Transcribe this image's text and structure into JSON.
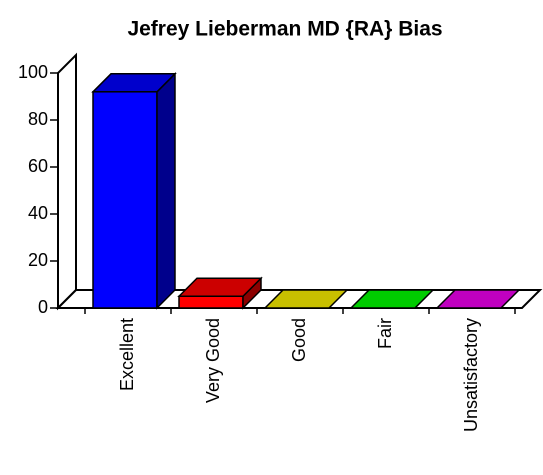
{
  "chart_data": {
    "type": "bar3d",
    "title": "Jefrey Lieberman MD {RA} Bias",
    "categories": [
      "Excellent",
      "Very Good",
      "Good",
      "Fair",
      "Unsatisfactory"
    ],
    "values": [
      92,
      5,
      0,
      0,
      0
    ],
    "colors": [
      "#0000ff",
      "#ff0000",
      "#c8c000",
      "#00cc00",
      "#c000c0"
    ],
    "ylim": [
      0,
      100
    ],
    "yticks": [
      0,
      20,
      40,
      60,
      80,
      100
    ]
  }
}
